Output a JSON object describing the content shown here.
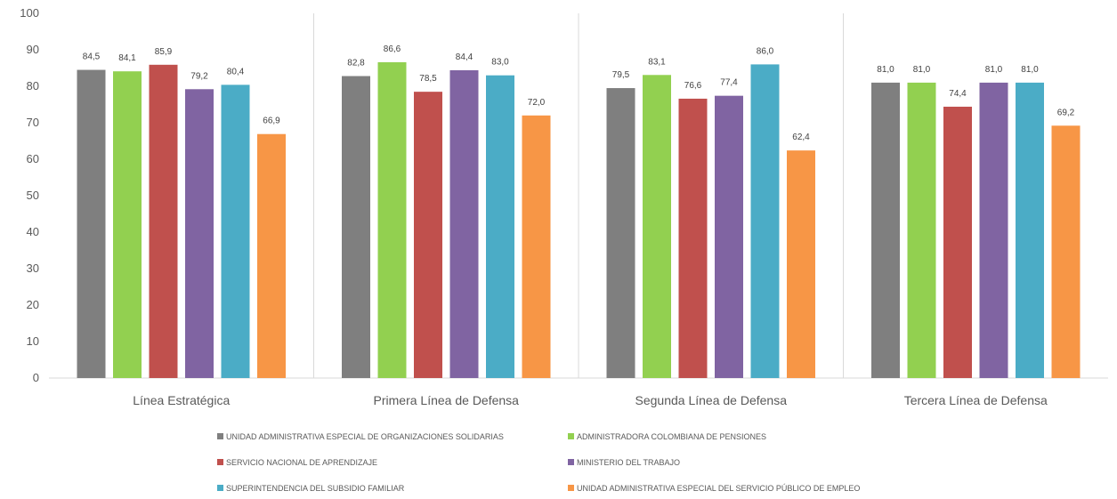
{
  "chart_data": {
    "type": "bar",
    "categories": [
      "Línea Estratégica",
      "Primera Línea de Defensa",
      "Segunda Línea de Defensa",
      "Tercera Línea de Defensa"
    ],
    "series": [
      {
        "name": "UNIDAD ADMINISTRATIVA ESPECIAL DE ORGANIZACIONES SOLIDARIAS",
        "color": "#7f7f7f",
        "values": [
          84.5,
          82.8,
          79.5,
          81.0
        ],
        "labels": [
          "84,5",
          "82,8",
          "79,5",
          "81,0"
        ]
      },
      {
        "name": "ADMINISTRADORA COLOMBIANA DE PENSIONES",
        "color": "#92d050",
        "values": [
          84.1,
          86.6,
          83.1,
          81.0
        ],
        "labels": [
          "84,1",
          "86,6",
          "83,1",
          "81,0"
        ]
      },
      {
        "name": "SERVICIO NACIONAL DE APRENDIZAJE",
        "color": "#c0504d",
        "values": [
          85.9,
          78.5,
          76.6,
          74.4
        ],
        "labels": [
          "85,9",
          "78,5",
          "76,6",
          "74,4"
        ]
      },
      {
        "name": "MINISTERIO DEL TRABAJO",
        "color": "#8064a2",
        "values": [
          79.2,
          84.4,
          77.4,
          81.0
        ],
        "labels": [
          "79,2",
          "84,4",
          "77,4",
          "81,0"
        ]
      },
      {
        "name": "SUPERINTENDENCIA DEL SUBSIDIO FAMILIAR",
        "color": "#4bacc6",
        "values": [
          80.4,
          83.0,
          86.0,
          81.0
        ],
        "labels": [
          "80,4",
          "83,0",
          "86,0",
          "81,0"
        ]
      },
      {
        "name": "UNIDAD ADMINISTRATIVA ESPECIAL DEL SERVICIO PÚBLICO DE EMPLEO",
        "color": "#f79646",
        "values": [
          66.9,
          72.0,
          62.4,
          69.2
        ],
        "labels": [
          "66,9",
          "72,0",
          "62,4",
          "69,2"
        ]
      }
    ],
    "ylim": [
      0,
      100
    ],
    "yticks": [
      0,
      10,
      20,
      30,
      40,
      50,
      60,
      70,
      80,
      90,
      100
    ],
    "grid": false,
    "category_separators": true,
    "legend_position": "bottom",
    "title": "",
    "xlabel": "",
    "ylabel": ""
  }
}
